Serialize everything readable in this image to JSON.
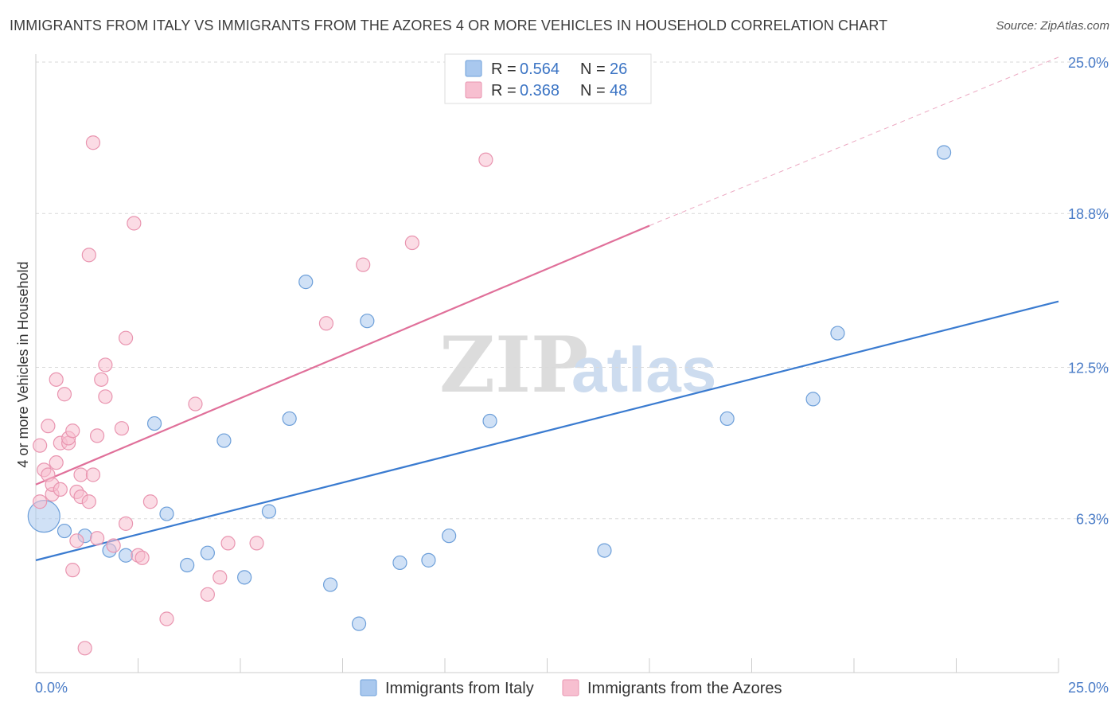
{
  "title": "IMMIGRANTS FROM ITALY VS IMMIGRANTS FROM THE AZORES 4 OR MORE VEHICLES IN HOUSEHOLD CORRELATION CHART",
  "source": "Source: ZipAtlas.com",
  "watermark": {
    "zip": "ZIP",
    "atlas": "atlas"
  },
  "legend": {
    "r_label": "R =",
    "n_label": "N =",
    "italy": {
      "r": "0.564",
      "n": "26"
    },
    "azores": {
      "r": "0.368",
      "n": "48"
    }
  },
  "colors": {
    "italy_fill": "#a9c8ee",
    "italy_stroke": "#6d9fd9",
    "italy_line": "#3a7bd0",
    "azores_fill": "#f7bfd0",
    "azores_stroke": "#e995b0",
    "azores_line": "#e0709a",
    "tick_text": "#4a7cc7"
  },
  "chart_data": {
    "type": "scatter",
    "xlabel": "",
    "ylabel": "4 or more Vehicles in Household",
    "xlim": [
      0,
      25
    ],
    "ylim": [
      0,
      25
    ],
    "x_tick_labels": [
      "0.0%",
      "25.0%"
    ],
    "y_ticks": [
      6.3,
      12.5,
      18.8,
      25.0
    ],
    "y_tick_labels": [
      "6.3%",
      "12.5%",
      "18.8%",
      "25.0%"
    ],
    "grid": true,
    "legend_position": "top-center",
    "series": [
      {
        "name": "Immigrants from Italy",
        "trend": {
          "x0": 0,
          "y0": 4.6,
          "x1": 25,
          "y1": 15.2,
          "dashed_extension": false
        },
        "points": [
          {
            "x": 0.2,
            "y": 6.4,
            "size": "large"
          },
          {
            "x": 0.7,
            "y": 5.8
          },
          {
            "x": 1.2,
            "y": 5.6
          },
          {
            "x": 1.8,
            "y": 5.0
          },
          {
            "x": 2.2,
            "y": 4.8
          },
          {
            "x": 2.9,
            "y": 10.2
          },
          {
            "x": 3.2,
            "y": 6.5
          },
          {
            "x": 3.7,
            "y": 4.4
          },
          {
            "x": 4.2,
            "y": 4.9
          },
          {
            "x": 4.6,
            "y": 9.5
          },
          {
            "x": 5.1,
            "y": 3.9
          },
          {
            "x": 5.7,
            "y": 6.6
          },
          {
            "x": 6.2,
            "y": 10.4
          },
          {
            "x": 6.6,
            "y": 16.0
          },
          {
            "x": 7.2,
            "y": 3.6
          },
          {
            "x": 7.9,
            "y": 2.0
          },
          {
            "x": 8.1,
            "y": 14.4
          },
          {
            "x": 8.9,
            "y": 4.5
          },
          {
            "x": 9.6,
            "y": 4.6
          },
          {
            "x": 10.1,
            "y": 5.6
          },
          {
            "x": 11.1,
            "y": 10.3
          },
          {
            "x": 13.9,
            "y": 5.0
          },
          {
            "x": 16.9,
            "y": 10.4
          },
          {
            "x": 19.0,
            "y": 11.2
          },
          {
            "x": 19.6,
            "y": 13.9
          },
          {
            "x": 22.2,
            "y": 21.3
          }
        ]
      },
      {
        "name": "Immigrants from the Azores",
        "trend": {
          "x0": 0,
          "y0": 7.7,
          "x1": 15,
          "y1": 18.3,
          "dashed_to_x": 25,
          "dashed_to_y": 25.2
        },
        "points": [
          {
            "x": 0.1,
            "y": 9.3
          },
          {
            "x": 0.1,
            "y": 7.0
          },
          {
            "x": 0.2,
            "y": 8.3
          },
          {
            "x": 0.3,
            "y": 10.1
          },
          {
            "x": 0.3,
            "y": 8.1
          },
          {
            "x": 0.4,
            "y": 7.3
          },
          {
            "x": 0.4,
            "y": 7.7
          },
          {
            "x": 0.5,
            "y": 8.6
          },
          {
            "x": 0.5,
            "y": 12.0
          },
          {
            "x": 0.6,
            "y": 7.5
          },
          {
            "x": 0.6,
            "y": 9.4
          },
          {
            "x": 0.7,
            "y": 11.4
          },
          {
            "x": 0.8,
            "y": 9.4
          },
          {
            "x": 0.8,
            "y": 9.6
          },
          {
            "x": 0.9,
            "y": 4.2
          },
          {
            "x": 0.9,
            "y": 9.9
          },
          {
            "x": 1.0,
            "y": 5.4
          },
          {
            "x": 1.0,
            "y": 7.4
          },
          {
            "x": 1.1,
            "y": 8.1
          },
          {
            "x": 1.1,
            "y": 7.2
          },
          {
            "x": 1.2,
            "y": 1.0
          },
          {
            "x": 1.3,
            "y": 17.1
          },
          {
            "x": 1.3,
            "y": 7.0
          },
          {
            "x": 1.4,
            "y": 8.1
          },
          {
            "x": 1.4,
            "y": 21.7
          },
          {
            "x": 1.5,
            "y": 9.7
          },
          {
            "x": 1.5,
            "y": 5.5
          },
          {
            "x": 1.6,
            "y": 12.0
          },
          {
            "x": 1.7,
            "y": 11.3
          },
          {
            "x": 1.7,
            "y": 12.6
          },
          {
            "x": 1.9,
            "y": 5.2
          },
          {
            "x": 2.1,
            "y": 10.0
          },
          {
            "x": 2.2,
            "y": 13.7
          },
          {
            "x": 2.2,
            "y": 6.1
          },
          {
            "x": 2.4,
            "y": 18.4
          },
          {
            "x": 2.5,
            "y": 4.8
          },
          {
            "x": 2.6,
            "y": 4.7
          },
          {
            "x": 2.8,
            "y": 7.0
          },
          {
            "x": 3.2,
            "y": 2.2
          },
          {
            "x": 3.9,
            "y": 11.0
          },
          {
            "x": 4.2,
            "y": 3.2
          },
          {
            "x": 4.5,
            "y": 3.9
          },
          {
            "x": 4.7,
            "y": 5.3
          },
          {
            "x": 5.4,
            "y": 5.3
          },
          {
            "x": 7.1,
            "y": 14.3
          },
          {
            "x": 8.0,
            "y": 16.7
          },
          {
            "x": 9.2,
            "y": 17.6
          },
          {
            "x": 11.0,
            "y": 21.0
          }
        ]
      }
    ]
  }
}
